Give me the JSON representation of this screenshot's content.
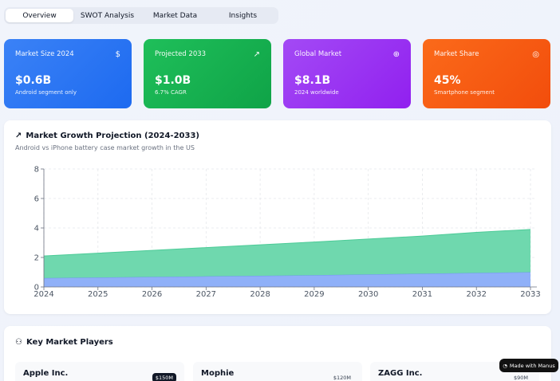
{
  "tabs": [
    {
      "label": "Overview",
      "active": true
    },
    {
      "label": "SWOT Analysis",
      "active": false
    },
    {
      "label": "Market Data",
      "active": false
    },
    {
      "label": "Insights",
      "active": false
    }
  ],
  "cards": [
    {
      "label": "Market Size 2024",
      "value": "$0.6B",
      "sub": "Android segment only",
      "icon": "dollar-icon",
      "glyph": "$"
    },
    {
      "label": "Projected 2033",
      "value": "$1.0B",
      "sub": "6.7% CAGR",
      "icon": "trending-up-icon",
      "glyph": "↗"
    },
    {
      "label": "Global Market",
      "value": "$8.1B",
      "sub": "2024 worldwide",
      "icon": "globe-icon",
      "glyph": "⊕"
    },
    {
      "label": "Market Share",
      "value": "45%",
      "sub": "Smartphone segment",
      "icon": "target-icon",
      "glyph": "◎"
    }
  ],
  "growth": {
    "title": "Market Growth Projection (2024-2033)",
    "subtitle": "Android vs iPhone battery case market growth in the US",
    "icon": "trending-up-icon"
  },
  "chart_data": {
    "type": "area",
    "stacked": true,
    "x": [
      "2024",
      "2025",
      "2026",
      "2027",
      "2028",
      "2029",
      "2030",
      "2031",
      "2032",
      "2033"
    ],
    "series": [
      {
        "values": [
          0.6,
          0.64,
          0.68,
          0.72,
          0.76,
          0.8,
          0.85,
          0.9,
          0.95,
          1.0
        ],
        "color": "#8fb0f8"
      },
      {
        "values": [
          1.5,
          1.65,
          1.8,
          1.95,
          2.1,
          2.25,
          2.4,
          2.55,
          2.75,
          2.9
        ],
        "color": "#6fd8ae"
      }
    ],
    "ylim": [
      0,
      8
    ],
    "yticks": [
      "0",
      "2",
      "4",
      "6",
      "8"
    ],
    "grid": true
  },
  "players": {
    "title": "Key Market Players",
    "icon": "users-icon",
    "items": [
      {
        "name": "Apple Inc.",
        "value": "$150M",
        "style": "dark"
      },
      {
        "name": "Mophie",
        "value": "$120M",
        "style": "light"
      },
      {
        "name": "ZAGG Inc.",
        "value": "$90M",
        "style": "light"
      }
    ]
  },
  "badge": {
    "label": "Made with Manus",
    "icon": "manus-icon"
  }
}
